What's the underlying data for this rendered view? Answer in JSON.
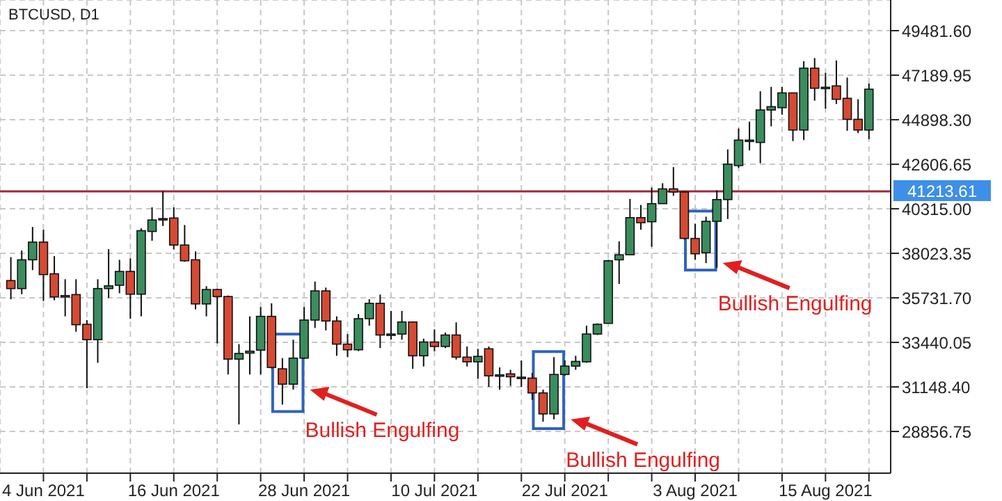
{
  "chart_data": {
    "type": "candlestick",
    "title": "BTCUSD, D1",
    "x": [
      "2021-06-01",
      "2021-06-02",
      "2021-06-03",
      "2021-06-04",
      "2021-06-05",
      "2021-06-06",
      "2021-06-07",
      "2021-06-08",
      "2021-06-09",
      "2021-06-10",
      "2021-06-11",
      "2021-06-12",
      "2021-06-13",
      "2021-06-14",
      "2021-06-15",
      "2021-06-16",
      "2021-06-17",
      "2021-06-18",
      "2021-06-19",
      "2021-06-20",
      "2021-06-21",
      "2021-06-22",
      "2021-06-23",
      "2021-06-24",
      "2021-06-25",
      "2021-06-26",
      "2021-06-27",
      "2021-06-28",
      "2021-06-29",
      "2021-06-30",
      "2021-07-01",
      "2021-07-02",
      "2021-07-03",
      "2021-07-04",
      "2021-07-05",
      "2021-07-06",
      "2021-07-07",
      "2021-07-08",
      "2021-07-09",
      "2021-07-10",
      "2021-07-11",
      "2021-07-12",
      "2021-07-13",
      "2021-07-14",
      "2021-07-15",
      "2021-07-16",
      "2021-07-17",
      "2021-07-18",
      "2021-07-19",
      "2021-07-20",
      "2021-07-21",
      "2021-07-22",
      "2021-07-23",
      "2021-07-24",
      "2021-07-25",
      "2021-07-26",
      "2021-07-27",
      "2021-07-28",
      "2021-07-29",
      "2021-07-30",
      "2021-07-31",
      "2021-08-01",
      "2021-08-02",
      "2021-08-03",
      "2021-08-04",
      "2021-08-05",
      "2021-08-06",
      "2021-08-07",
      "2021-08-08",
      "2021-08-09",
      "2021-08-10",
      "2021-08-11",
      "2021-08-12",
      "2021-08-13",
      "2021-08-14",
      "2021-08-15",
      "2021-08-16",
      "2021-08-17",
      "2021-08-18",
      "2021-08-19"
    ],
    "ohlc": [
      [
        36620,
        37830,
        35660,
        36210
      ],
      [
        36210,
        38170,
        35920,
        37690
      ],
      [
        37690,
        39380,
        37160,
        38600
      ],
      [
        38600,
        39240,
        35570,
        36930
      ],
      [
        36970,
        37880,
        35610,
        35780
      ],
      [
        35850,
        36690,
        34780,
        35830
      ],
      [
        35900,
        36690,
        33990,
        34350
      ],
      [
        34370,
        34590,
        31080,
        33580
      ],
      [
        33580,
        36690,
        32390,
        36210
      ],
      [
        36210,
        38240,
        35730,
        36350
      ],
      [
        36380,
        37690,
        35970,
        37090
      ],
      [
        37090,
        37760,
        34660,
        35920
      ],
      [
        35920,
        39310,
        34780,
        39190
      ],
      [
        39150,
        40390,
        38670,
        39740
      ],
      [
        39770,
        41220,
        39430,
        39810
      ],
      [
        39840,
        40390,
        38220,
        38450
      ],
      [
        38450,
        39480,
        37590,
        37640
      ],
      [
        37690,
        38120,
        35140,
        35420
      ],
      [
        35420,
        36330,
        34780,
        36160
      ],
      [
        36160,
        36210,
        33390,
        35800
      ],
      [
        35800,
        35850,
        31790,
        32580
      ],
      [
        32580,
        33350,
        29220,
        32870
      ],
      [
        32890,
        34780,
        31790,
        32990
      ],
      [
        33040,
        35260,
        31790,
        34780
      ],
      [
        34780,
        35450,
        32100,
        32150
      ],
      [
        32080,
        32630,
        30240,
        31290
      ],
      [
        31290,
        33580,
        31010,
        32630
      ],
      [
        32630,
        35260,
        32580,
        34590
      ],
      [
        34590,
        36570,
        34180,
        36090
      ],
      [
        36090,
        36260,
        34060,
        34540
      ],
      [
        34540,
        34780,
        32750,
        33350
      ],
      [
        33350,
        33870,
        32680,
        33060
      ],
      [
        33060,
        34900,
        32990,
        34660
      ],
      [
        34660,
        35660,
        34300,
        35450
      ],
      [
        35450,
        35900,
        33150,
        33820
      ],
      [
        33870,
        35060,
        33580,
        33870
      ],
      [
        33870,
        35060,
        33580,
        34490
      ],
      [
        34490,
        34490,
        32080,
        32750
      ],
      [
        32750,
        33630,
        32200,
        33460
      ],
      [
        33460,
        34110,
        32990,
        33230
      ],
      [
        33230,
        33940,
        33150,
        33820
      ],
      [
        33820,
        34470,
        32560,
        32680
      ],
      [
        32680,
        33230,
        32200,
        32440
      ],
      [
        32440,
        33110,
        31560,
        32720
      ],
      [
        33110,
        33230,
        31150,
        31720
      ],
      [
        31770,
        32150,
        31010,
        31770
      ],
      [
        31820,
        32030,
        31200,
        31670
      ],
      [
        31650,
        32510,
        31150,
        31650
      ],
      [
        31600,
        31870,
        30480,
        30840
      ],
      [
        30840,
        31010,
        29360,
        29760
      ],
      [
        29760,
        32680,
        29480,
        31790
      ],
      [
        31790,
        32510,
        31720,
        32220
      ],
      [
        32220,
        32750,
        32030,
        32460
      ],
      [
        32440,
        34300,
        32390,
        33870
      ],
      [
        33870,
        34420,
        33820,
        34370
      ],
      [
        34420,
        37690,
        34420,
        37640
      ],
      [
        37690,
        38640,
        36450,
        37950
      ],
      [
        37950,
        40820,
        37950,
        39860
      ],
      [
        39860,
        40510,
        39240,
        39600
      ],
      [
        39650,
        41410,
        38360,
        40580
      ],
      [
        40580,
        41630,
        40580,
        41340
      ],
      [
        41340,
        42460,
        40980,
        41180
      ],
      [
        41180,
        41220,
        38740,
        38790
      ],
      [
        38790,
        39550,
        37690,
        38000
      ],
      [
        38050,
        39910,
        37520,
        39670
      ],
      [
        39670,
        41270,
        37280,
        40790
      ],
      [
        40790,
        43370,
        39790,
        42610
      ],
      [
        42540,
        44450,
        42420,
        43850
      ],
      [
        43850,
        44800,
        43320,
        43850
      ],
      [
        43730,
        46360,
        42660,
        45400
      ],
      [
        45400,
        46590,
        44560,
        45570
      ],
      [
        45520,
        46590,
        45160,
        46280
      ],
      [
        46280,
        46280,
        43800,
        44370
      ],
      [
        44370,
        47910,
        43850,
        47550
      ],
      [
        47550,
        48070,
        45880,
        46520
      ],
      [
        46570,
        47310,
        45470,
        46570
      ],
      [
        46640,
        47950,
        45710,
        45950
      ],
      [
        46000,
        47070,
        44330,
        44920
      ],
      [
        44920,
        45950,
        44210,
        44370
      ],
      [
        44370,
        46760,
        43900,
        46470
      ]
    ],
    "colors": [
      "#d64a33",
      "#3b8d5e",
      "#3b8d5e",
      "#d64a33",
      "#d64a33",
      "#d64a33",
      "#d64a33",
      "#d64a33",
      "#3b8d5e",
      "#3b8d5e",
      "#3b8d5e",
      "#d64a33",
      "#3b8d5e",
      "#3b8d5e",
      "#3b8d5e",
      "#d64a33",
      "#d64a33",
      "#d64a33",
      "#3b8d5e",
      "#d64a33",
      "#d64a33",
      "#3b8d5e",
      "#3b8d5e",
      "#3b8d5e",
      "#d64a33",
      "#d64a33",
      "#3b8d5e",
      "#3b8d5e",
      "#3b8d5e",
      "#d64a33",
      "#d64a33",
      "#d64a33",
      "#3b8d5e",
      "#3b8d5e",
      "#d64a33",
      "#3b8d5e",
      "#3b8d5e",
      "#d64a33",
      "#3b8d5e",
      "#d64a33",
      "#3b8d5e",
      "#d64a33",
      "#d64a33",
      "#3b8d5e",
      "#d64a33",
      "#3b8d5e",
      "#d64a33",
      "#3b8d5e",
      "#d64a33",
      "#d64a33",
      "#3b8d5e",
      "#3b8d5e",
      "#3b8d5e",
      "#3b8d5e",
      "#3b8d5e",
      "#3b8d5e",
      "#3b8d5e",
      "#3b8d5e",
      "#d64a33",
      "#3b8d5e",
      "#3b8d5e",
      "#d64a33",
      "#d64a33",
      "#d64a33",
      "#3b8d5e",
      "#3b8d5e",
      "#3b8d5e",
      "#3b8d5e",
      "#3b8d5e",
      "#3b8d5e",
      "#3b8d5e",
      "#3b8d5e",
      "#d64a33",
      "#3b8d5e",
      "#d64a33",
      "#3b8d5e",
      "#d64a33",
      "#d64a33",
      "#d64a33",
      "#3b8d5e"
    ],
    "xlim": [
      "2021-05-31",
      "2021-08-21"
    ],
    "xticks": [
      {
        "value": "2021-06-04",
        "label": "4 Jun 2021"
      },
      {
        "value": "2021-06-08",
        "label": null
      },
      {
        "value": "2021-06-12",
        "label": null
      },
      {
        "value": "2021-06-16",
        "label": "16 Jun 2021"
      },
      {
        "value": "2021-06-20",
        "label": null
      },
      {
        "value": "2021-06-24",
        "label": null
      },
      {
        "value": "2021-06-28",
        "label": "28 Jun 2021"
      },
      {
        "value": "2021-07-02",
        "label": null
      },
      {
        "value": "2021-07-06",
        "label": null
      },
      {
        "value": "2021-07-10",
        "label": "10 Jul 2021"
      },
      {
        "value": "2021-07-14",
        "label": null
      },
      {
        "value": "2021-07-18",
        "label": null
      },
      {
        "value": "2021-07-22",
        "label": "22 Jul 2021"
      },
      {
        "value": "2021-07-26",
        "label": null
      },
      {
        "value": "2021-07-30",
        "label": null
      },
      {
        "value": "2021-08-03",
        "label": "3 Aug 2021"
      },
      {
        "value": "2021-08-07",
        "label": null
      },
      {
        "value": "2021-08-11",
        "label": null
      },
      {
        "value": "2021-08-15",
        "label": "15 Aug 2021"
      },
      {
        "value": "2021-08-19",
        "label": null
      }
    ],
    "ylim": [
      26710,
      51060
    ],
    "yticks": [
      28856.75,
      {
        "value": 31148.4,
        "label": "31148.40"
      },
      33440.05,
      {
        "value": 35731.7,
        "label": "35731.70"
      },
      38023.35,
      {
        "value": 40315,
        "label": "40315.00"
      },
      42606.65,
      {
        "value": 44898.3,
        "label": "44898.30"
      },
      47189.95,
      {
        "value": 49481.6,
        "label": "49481.60"
      }
    ],
    "grid": true,
    "ref_lines": [
      {
        "axis": "y",
        "value": 41213.61,
        "label": "41213.61",
        "color": "#9c2a3a"
      }
    ],
    "annotations": [
      {
        "text": "Bullish Engulfing",
        "x": "2021-06-27",
        "y": 31010
      },
      {
        "text": "Bullish Engulfing",
        "x": "2021-07-21",
        "y": 29480
      },
      {
        "text": "Bullish Engulfing",
        "x": "2021-08-04",
        "y": 37520
      }
    ]
  }
}
